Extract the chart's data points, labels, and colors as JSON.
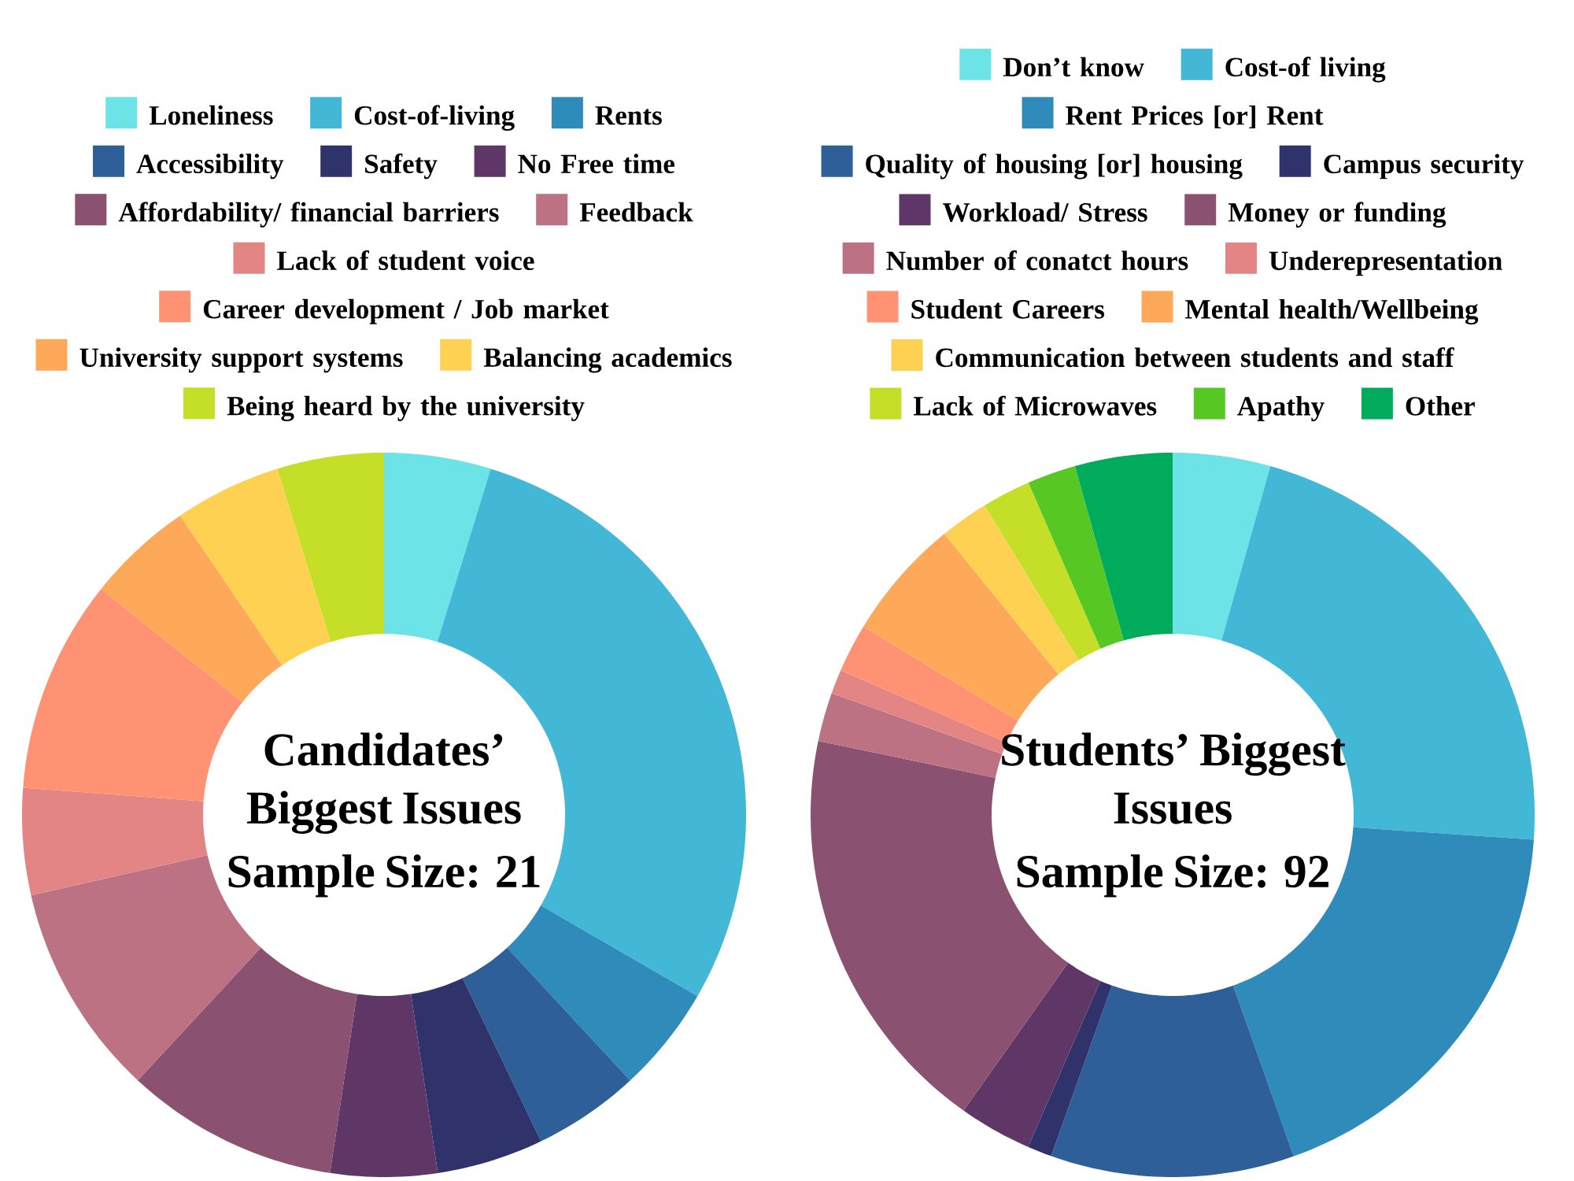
{
  "chart_data": [
    {
      "type": "donut",
      "title": "Candidates’ Biggest Issues",
      "subtitle": "Sample Size: 21",
      "legend": "top",
      "categories": [
        "Loneliness",
        "Cost-of-living",
        "Rents",
        "Accessibility",
        "Safety",
        "No Free time",
        "Affordability/ financial barriers",
        "Feedback",
        "Lack of student voice",
        "Career development / Job market",
        "University support systems",
        "Balancing academics",
        "Being heard by the university"
      ],
      "values": [
        4.76,
        28.57,
        4.76,
        4.76,
        4.76,
        4.76,
        9.52,
        9.52,
        4.76,
        9.52,
        4.76,
        4.76,
        4.76
      ],
      "colors": [
        "#6ce3e6",
        "#42b7d6",
        "#2e8bba",
        "#2e5f98",
        "#30336b",
        "#5e3766",
        "#8b5170",
        "#bc7283",
        "#e38585",
        "#fe9273",
        "#fea95a",
        "#fed152",
        "#c5de28"
      ]
    },
    {
      "type": "donut",
      "title": "Students’ Biggest Issues",
      "subtitle": "Sample Size: 92",
      "legend": "top",
      "categories": [
        "Don’t know",
        "Cost-of living",
        "Rent Prices [or] Rent",
        "Quality of housing [or] housing",
        "Campus security",
        "Workload/ Stress",
        "Money or funding",
        "Number of conatct hours",
        "Underepresentation",
        "Student Careers",
        "Mental health/Wellbeing",
        "Communication between students and staff",
        "Lack of Microwaves",
        "Apathy",
        "Other"
      ],
      "values": [
        4.35,
        21.74,
        18.48,
        10.87,
        1.09,
        3.26,
        18.48,
        2.17,
        1.09,
        2.17,
        5.43,
        2.17,
        2.17,
        2.17,
        4.35
      ],
      "colors": [
        "#6ce3e6",
        "#42b7d6",
        "#2e8bba",
        "#2e5f98",
        "#30336b",
        "#5e3766",
        "#8b5170",
        "#bc7283",
        "#e38585",
        "#fe9273",
        "#fea95a",
        "#fed152",
        "#c5de28",
        "#57c823",
        "#00ab5c"
      ]
    }
  ]
}
